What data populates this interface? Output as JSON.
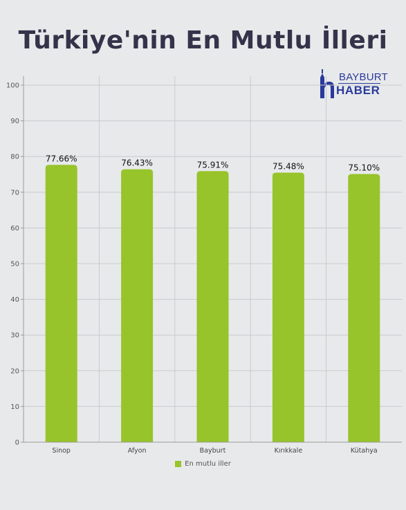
{
  "title": "Türkiye'nin En Mutlu İlleri",
  "logo": {
    "top": "BAYBURT",
    "bottom": "HABER",
    "icon": "minaret-h-icon",
    "color": "#2a3a9c"
  },
  "legend": {
    "label": "En mutlu iller",
    "color": "#97c42a"
  },
  "chart_data": {
    "type": "bar",
    "title": "Türkiye'nin En Mutlu İlleri",
    "categories": [
      "Sinop",
      "Afyon",
      "Bayburt",
      "Kırıkkale",
      "Kütahya"
    ],
    "series": [
      {
        "name": "En mutlu iller",
        "values": [
          77.66,
          76.43,
          75.91,
          75.48,
          75.1
        ],
        "labels": [
          "77.66%",
          "76.43%",
          "75.91%",
          "75.48%",
          "75.10%"
        ],
        "color": "#97c42a"
      }
    ],
    "xlabel": "",
    "ylabel": "",
    "ylim": [
      0,
      100
    ],
    "yticks": [
      0,
      10,
      20,
      30,
      40,
      50,
      60,
      70,
      80,
      90,
      100
    ],
    "grid": true,
    "legend_position": "bottom"
  }
}
